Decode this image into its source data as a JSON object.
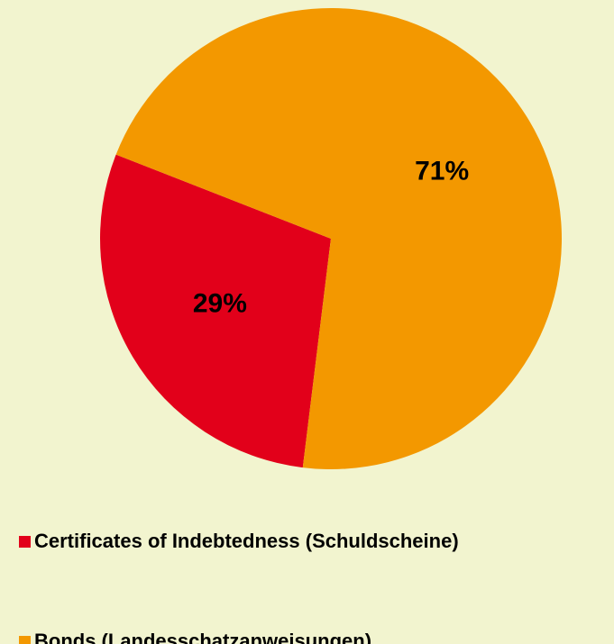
{
  "chart_data": {
    "type": "pie",
    "categories": [
      "Certificates of Indebtedness (Schuldscheine)",
      "Bonds (Landesschatzanweisungen)"
    ],
    "values": [
      29,
      71
    ],
    "value_labels": [
      "29%",
      "71%"
    ],
    "colors": [
      "#e2001a",
      "#f39800"
    ]
  }
}
